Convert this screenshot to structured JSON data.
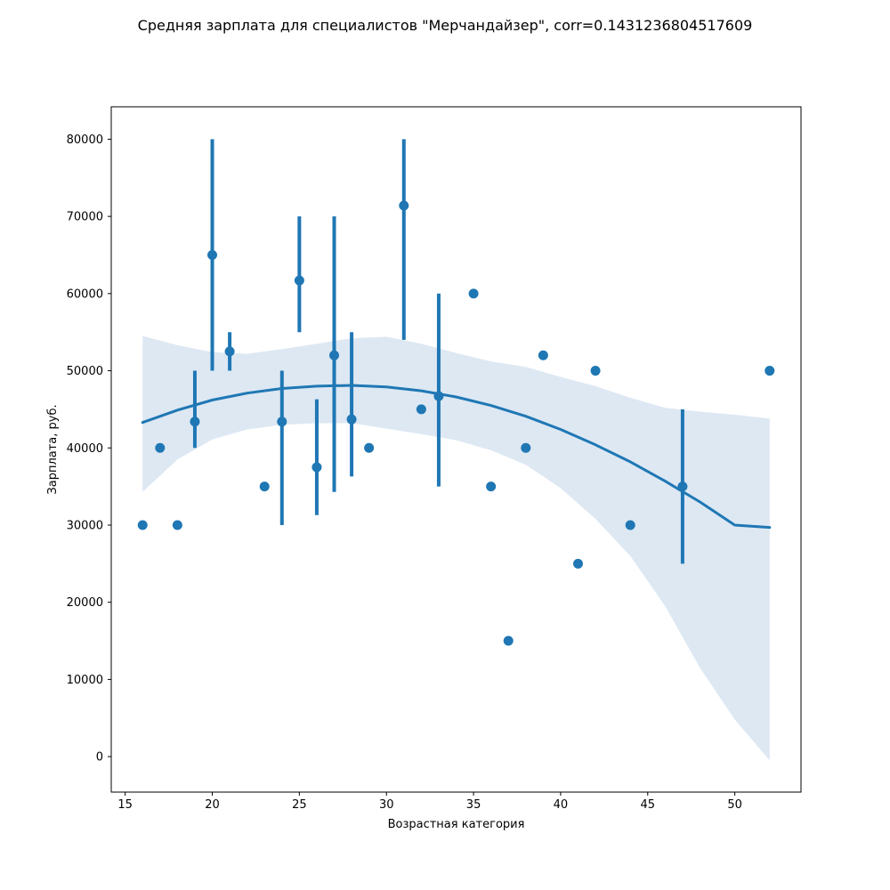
{
  "chart_data": {
    "type": "scatter",
    "title": "Средняя зарплата для специалистов \"Мерчандайзер\", corr=0.1431236804517609",
    "xlabel": "Возрастная категория",
    "ylabel": "Зарплата, руб.",
    "xlim": [
      14.2,
      53.8
    ],
    "ylim": [
      -4600,
      84200
    ],
    "xticks": [
      15,
      20,
      25,
      30,
      35,
      40,
      45,
      50
    ],
    "yticks": [
      0,
      10000,
      20000,
      30000,
      40000,
      50000,
      60000,
      70000,
      80000
    ],
    "grid": false,
    "color": "#1f77b4",
    "band_color": "#dde8f3",
    "points": [
      {
        "x": 16,
        "y": 30000
      },
      {
        "x": 17,
        "y": 40000
      },
      {
        "x": 18,
        "y": 30000
      },
      {
        "x": 19,
        "y": 43400,
        "ci": [
          40000,
          50000
        ]
      },
      {
        "x": 20,
        "y": 65000,
        "ci": [
          50000,
          80000
        ]
      },
      {
        "x": 21,
        "y": 52500,
        "ci": [
          50000,
          55000
        ]
      },
      {
        "x": 23,
        "y": 35000
      },
      {
        "x": 24,
        "y": 43400,
        "ci": [
          30000,
          50000
        ]
      },
      {
        "x": 25,
        "y": 61700,
        "ci": [
          55000,
          70000
        ]
      },
      {
        "x": 26,
        "y": 37500,
        "ci": [
          31300,
          46300
        ]
      },
      {
        "x": 27,
        "y": 52000,
        "ci": [
          34300,
          70000
        ]
      },
      {
        "x": 28,
        "y": 43700,
        "ci": [
          36300,
          55000
        ]
      },
      {
        "x": 29,
        "y": 40000
      },
      {
        "x": 31,
        "y": 71400,
        "ci": [
          54000,
          80000
        ]
      },
      {
        "x": 32,
        "y": 45000
      },
      {
        "x": 33,
        "y": 46700,
        "ci": [
          35000,
          60000
        ]
      },
      {
        "x": 35,
        "y": 60000
      },
      {
        "x": 36,
        "y": 35000
      },
      {
        "x": 37,
        "y": 15000
      },
      {
        "x": 38,
        "y": 40000
      },
      {
        "x": 39,
        "y": 52000
      },
      {
        "x": 41,
        "y": 25000
      },
      {
        "x": 42,
        "y": 50000
      },
      {
        "x": 44,
        "y": 30000
      },
      {
        "x": 47,
        "y": 35000,
        "ci": [
          25000,
          45000
        ]
      },
      {
        "x": 52,
        "y": 50000
      }
    ],
    "fit": {
      "x": [
        16,
        18,
        20,
        22,
        24,
        26,
        28,
        30,
        32,
        34,
        36,
        38,
        40,
        42,
        44,
        46,
        48,
        50,
        52
      ],
      "y": [
        43300,
        44900,
        46200,
        47100,
        47700,
        48000,
        48100,
        47900,
        47400,
        46600,
        45500,
        44100,
        42400,
        40400,
        38200,
        35700,
        33000,
        30000,
        29700
      ]
    },
    "band": {
      "x": [
        16,
        18,
        20,
        22,
        24,
        26,
        28,
        30,
        32,
        34,
        36,
        38,
        40,
        42,
        44,
        46,
        48,
        50,
        52
      ],
      "upper": [
        54500,
        53300,
        52400,
        52200,
        52800,
        53500,
        54200,
        54400,
        53500,
        52300,
        51200,
        50500,
        49200,
        48000,
        46500,
        45200,
        44700,
        44300,
        43800
      ],
      "lower": [
        34300,
        38500,
        41100,
        42400,
        43000,
        43200,
        43200,
        42500,
        41800,
        41000,
        39700,
        37800,
        34800,
        30800,
        26000,
        19500,
        11500,
        4800,
        -500
      ]
    }
  }
}
